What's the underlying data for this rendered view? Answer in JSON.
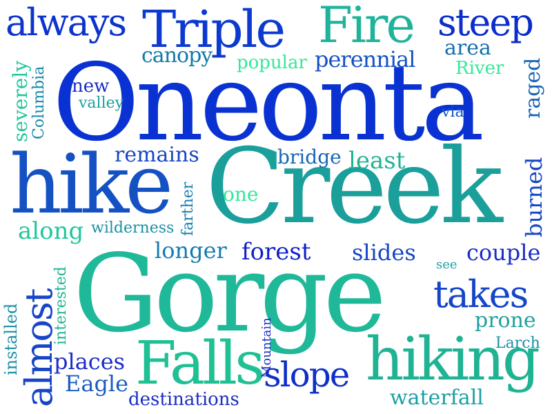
{
  "words": {
    "oneonta": {
      "text": "Oneonta",
      "color": "#0a32d2"
    },
    "creek": {
      "text": "Creek",
      "color": "#1a9f9a"
    },
    "gorge": {
      "text": "Gorge",
      "color": "#1fb899"
    },
    "hike": {
      "text": "hike",
      "color": "#1451c3"
    },
    "triple": {
      "text": "Triple",
      "color": "#0c3ad0"
    },
    "fire": {
      "text": "Fire",
      "color": "#20b39b"
    },
    "falls": {
      "text": "Falls",
      "color": "#1fc094"
    },
    "hiking": {
      "text": "hiking",
      "color": "#1fb394"
    },
    "always": {
      "text": "always",
      "color": "#0c33cc"
    },
    "steep": {
      "text": "steep",
      "color": "#0a2dcc"
    },
    "takes": {
      "text": "takes",
      "color": "#1446c8"
    },
    "almost": {
      "text": "almost",
      "color": "#1745c6"
    },
    "slope": {
      "text": "slope",
      "color": "#0f2fc8"
    },
    "canopy": {
      "text": "canopy",
      "color": "#127aa8"
    },
    "popular": {
      "text": "popular",
      "color": "#33e89a"
    },
    "perennial": {
      "text": "perennial",
      "color": "#1451c3"
    },
    "area": {
      "text": "area",
      "color": "#1570b0"
    },
    "river": {
      "text": "River",
      "color": "#33e89a"
    },
    "new": {
      "text": "new",
      "color": "#1a2cc4"
    },
    "valley": {
      "text": "valley",
      "color": "#1a9f9a"
    },
    "severely": {
      "text": "severely",
      "color": "#20c79a"
    },
    "columbia": {
      "text": "Columbia",
      "color": "#138aa4"
    },
    "raged": {
      "text": "raged",
      "color": "#1a65b7"
    },
    "via": {
      "text": "via",
      "color": "#1458bd"
    },
    "remains": {
      "text": "remains",
      "color": "#1546c4"
    },
    "bridge": {
      "text": "bridge",
      "color": "#1766b8"
    },
    "least": {
      "text": "least",
      "color": "#1fb394"
    },
    "one": {
      "text": "one",
      "color": "#33e89a"
    },
    "farther": {
      "text": "farther",
      "color": "#1a7fae"
    },
    "burned": {
      "text": "burned",
      "color": "#1546c4"
    },
    "along": {
      "text": "along",
      "color": "#20c79a"
    },
    "wilderness": {
      "text": "wilderness",
      "color": "#1a8fa5"
    },
    "longer": {
      "text": "longer",
      "color": "#157bb0"
    },
    "forest": {
      "text": "forest",
      "color": "#0f1fc8"
    },
    "slides": {
      "text": "slides",
      "color": "#1546c4"
    },
    "couple": {
      "text": "couple",
      "color": "#1a2cc4"
    },
    "see": {
      "text": "see",
      "color": "#1a9fa6"
    },
    "installed": {
      "text": "installed",
      "color": "#1a8fa5"
    },
    "interested": {
      "text": "interested",
      "color": "#1fb394"
    },
    "mountain": {
      "text": "Mountain",
      "color": "#1a2cc4"
    },
    "prone": {
      "text": "prone",
      "color": "#1fa09e"
    },
    "larch": {
      "text": "Larch",
      "color": "#1a8fa5"
    },
    "places": {
      "text": "places",
      "color": "#1a2cc4"
    },
    "eagle": {
      "text": "Eagle",
      "color": "#1a5cc0"
    },
    "destinations": {
      "text": "destinations",
      "color": "#1a2cc4"
    },
    "waterfall": {
      "text": "waterfall",
      "color": "#1a9fa6"
    }
  }
}
